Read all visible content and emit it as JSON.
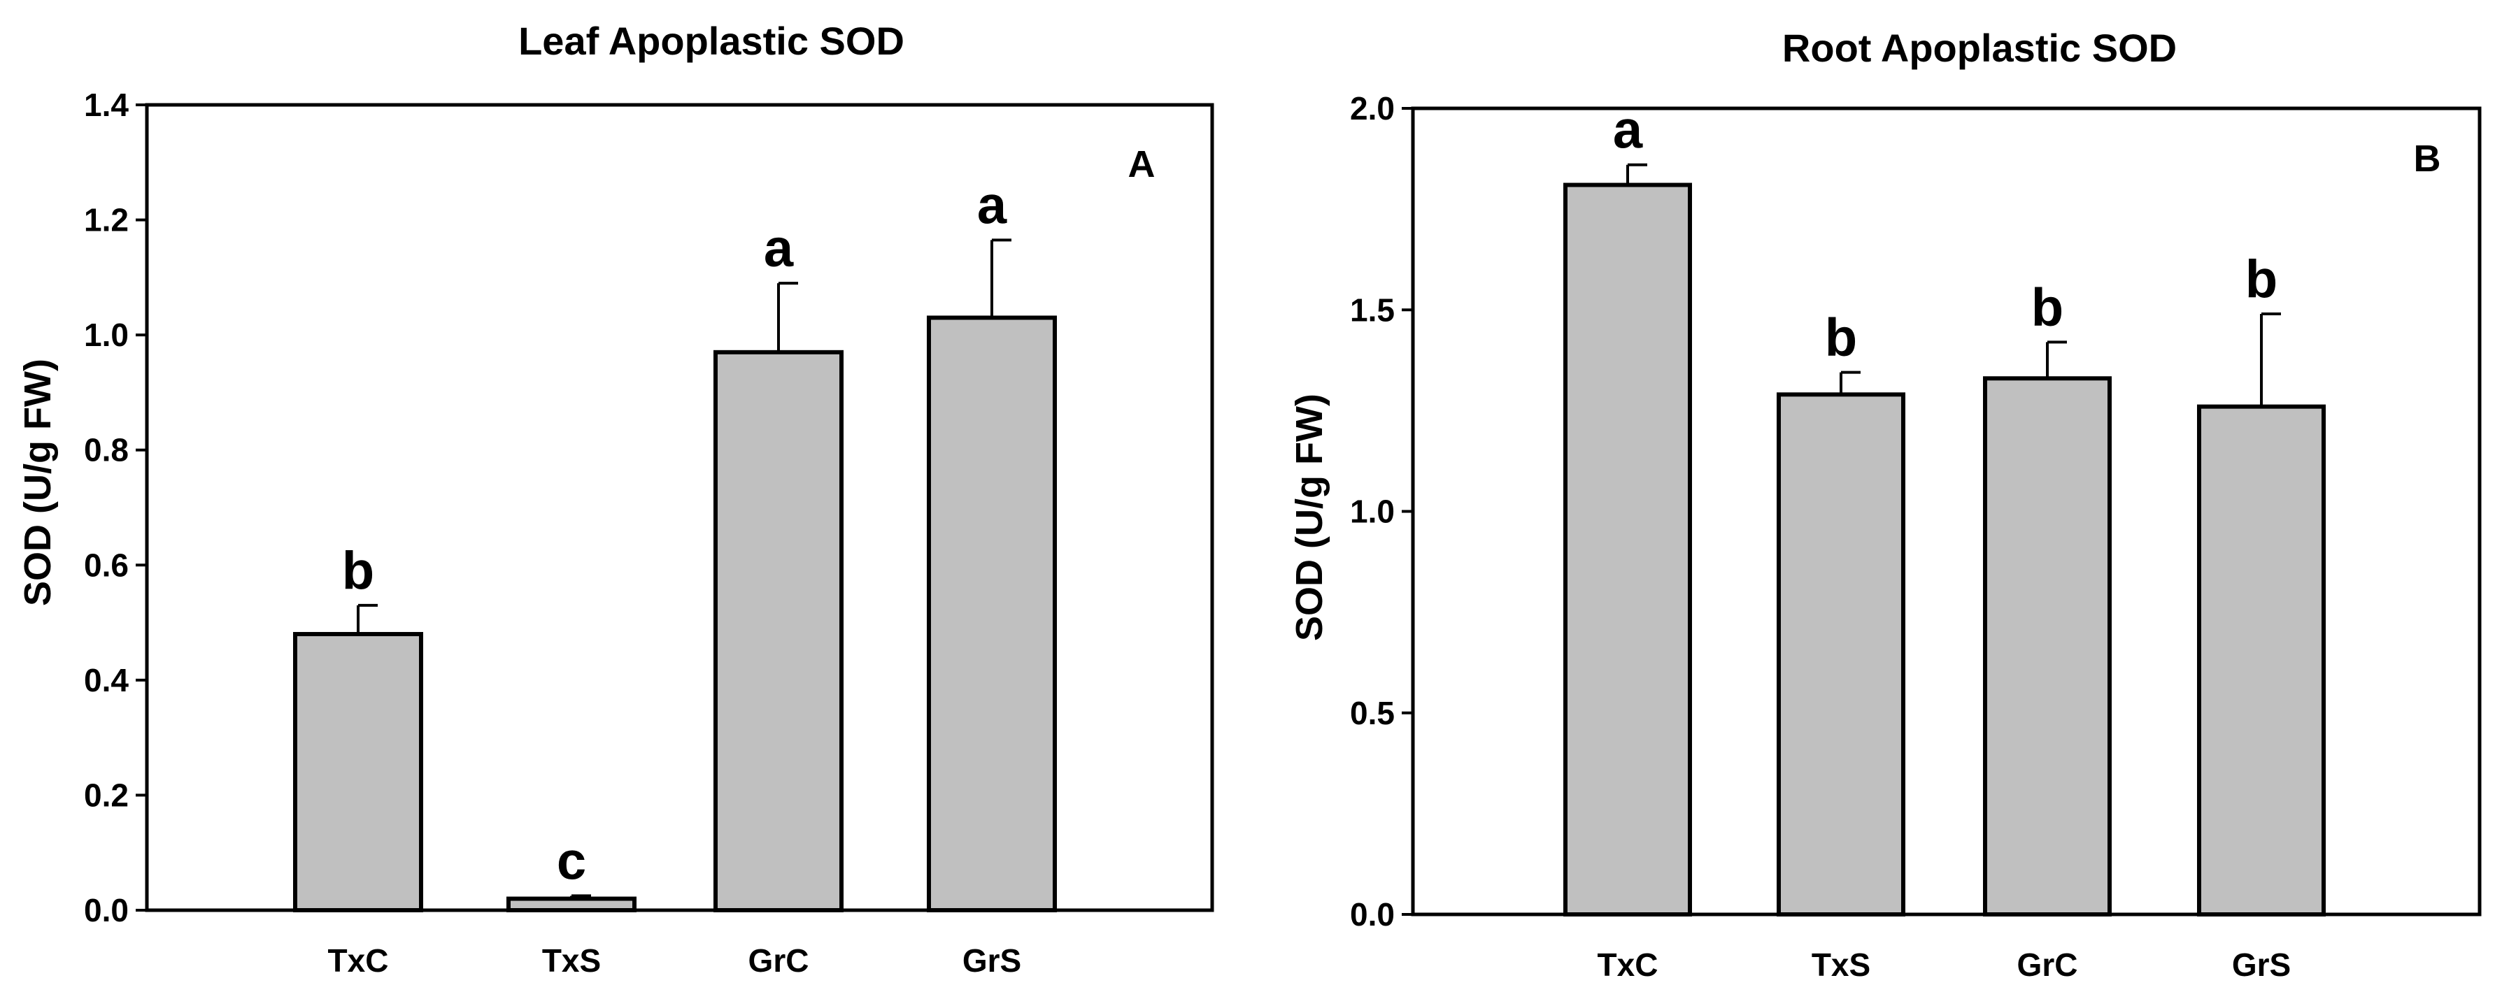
{
  "chart_data": [
    {
      "type": "bar",
      "title": "Leaf Apoplastic SOD",
      "panel_label": "A",
      "xlabel": "",
      "ylabel": "SOD (U/g FW)",
      "ylim": [
        0,
        1.4
      ],
      "yticks": [
        "0.0",
        "0.2",
        "0.4",
        "0.6",
        "0.8",
        "1.0",
        "1.2",
        "1.4"
      ],
      "ytick_values": [
        0,
        0.2,
        0.4,
        0.6,
        0.8,
        1.0,
        1.2,
        1.4
      ],
      "categories": [
        "TxC",
        "TxS",
        "GrC",
        "GrS"
      ],
      "values": [
        0.48,
        0.02,
        0.97,
        1.03
      ],
      "errors": [
        0.05,
        0.005,
        0.12,
        0.135
      ],
      "significance": [
        "b",
        "c",
        "a",
        "a"
      ],
      "bar_color": "#c0c0c0",
      "grid": false
    },
    {
      "type": "bar",
      "title": "Root Apoplastic SOD",
      "panel_label": "B",
      "xlabel": "",
      "ylabel": "SOD (U/g FW)",
      "ylim": [
        0,
        2.0
      ],
      "yticks": [
        "0.0",
        "0.5",
        "1.0",
        "1.5",
        "2.0"
      ],
      "ytick_values": [
        0,
        0.5,
        1.0,
        1.5,
        2.0
      ],
      "categories": [
        "TxC",
        "TxS",
        "GrC",
        "GrS"
      ],
      "values": [
        1.81,
        1.29,
        1.33,
        1.26
      ],
      "errors": [
        0.05,
        0.055,
        0.09,
        0.23
      ],
      "significance": [
        "a",
        "b",
        "b",
        "b"
      ],
      "bar_color": "#c0c0c0",
      "grid": false
    }
  ]
}
